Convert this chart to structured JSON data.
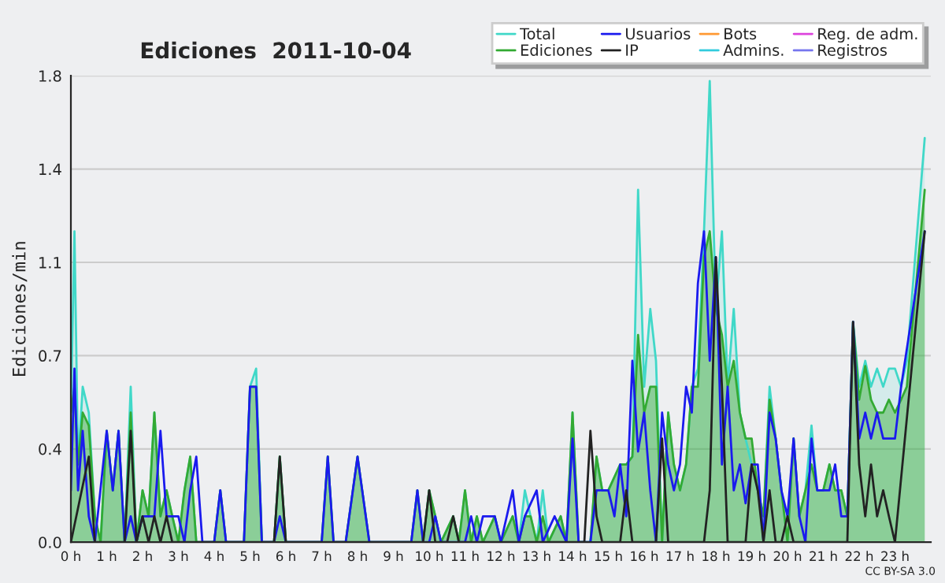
{
  "chart_data": {
    "type": "line",
    "title": "Ediciones  2011-10-04",
    "ylabel": "Ediciones/min",
    "xlim": [
      0,
      24
    ],
    "ylim": [
      0,
      1.8
    ],
    "xticks": [
      {
        "value": 0,
        "label": "0 h"
      },
      {
        "value": 1,
        "label": "1 h"
      },
      {
        "value": 2,
        "label": "2 h"
      },
      {
        "value": 3,
        "label": "3 h"
      },
      {
        "value": 4,
        "label": "4 h"
      },
      {
        "value": 5,
        "label": "5 h"
      },
      {
        "value": 6,
        "label": "6 h"
      },
      {
        "value": 7,
        "label": "7 h"
      },
      {
        "value": 8,
        "label": "8 h"
      },
      {
        "value": 9,
        "label": "9 h"
      },
      {
        "value": 10,
        "label": "10 h"
      },
      {
        "value": 11,
        "label": "11 h"
      },
      {
        "value": 12,
        "label": "12 h"
      },
      {
        "value": 13,
        "label": "13 h"
      },
      {
        "value": 14,
        "label": "14 h"
      },
      {
        "value": 15,
        "label": "15 h"
      },
      {
        "value": 16,
        "label": "16 h"
      },
      {
        "value": 17,
        "label": "17 h"
      },
      {
        "value": 18,
        "label": "18 h"
      },
      {
        "value": 19,
        "label": "19 h"
      },
      {
        "value": 20,
        "label": "20 h"
      },
      {
        "value": 21,
        "label": "21 h"
      },
      {
        "value": 22,
        "label": "22 h"
      },
      {
        "value": 23,
        "label": "23 h"
      }
    ],
    "yticks": [
      {
        "value": 0,
        "label": "0.0"
      },
      {
        "value": 0.36,
        "label": "0.4"
      },
      {
        "value": 0.72,
        "label": "0.7"
      },
      {
        "value": 1.08,
        "label": "1.1"
      },
      {
        "value": 1.44,
        "label": "1.4"
      },
      {
        "value": 1.8,
        "label": "1.8"
      }
    ],
    "grid": "y",
    "legend": "top right",
    "annotations": [
      "CC BY-SA 3.0"
    ],
    "series": [
      {
        "name": "Total",
        "type": "area",
        "color": "#40d8c8",
        "x": [
          0,
          0.1,
          0.2,
          0.33,
          0.5,
          0.67,
          0.83,
          1,
          1.17,
          1.33,
          1.5,
          1.67,
          1.83,
          2,
          2.17,
          2.33,
          2.5,
          2.67,
          2.83,
          3,
          3.17,
          3.33,
          3.5,
          4,
          4.17,
          4.33,
          4.83,
          5,
          5.17,
          5.33,
          5.67,
          5.83,
          6,
          7,
          7.17,
          7.33,
          7.67,
          8,
          8.33,
          9.5,
          9.67,
          9.83,
          10,
          10.17,
          10.33,
          10.67,
          10.83,
          11,
          11.17,
          11.33,
          11.5,
          11.83,
          12,
          12.33,
          12.5,
          12.67,
          12.83,
          13,
          13.17,
          13.33,
          13.67,
          13.83,
          14,
          14.17,
          14.5,
          14.67,
          14.83,
          15,
          15.33,
          15.5,
          15.67,
          15.83,
          16,
          16.17,
          16.33,
          16.5,
          16.67,
          16.83,
          17,
          17.17,
          17.33,
          17.5,
          17.67,
          17.83,
          18,
          18.17,
          18.33,
          18.5,
          18.67,
          18.83,
          19,
          19.17,
          19.33,
          19.5,
          19.67,
          19.83,
          20,
          20.17,
          20.33,
          20.5,
          20.67,
          20.83,
          21,
          21.17,
          21.33,
          21.5,
          21.67,
          21.83,
          22,
          22.17,
          22.33,
          22.5,
          22.67,
          22.83,
          23,
          23.17,
          23.33,
          23.83
        ],
        "values": [
          0.5,
          1.2,
          0.3,
          0.6,
          0.5,
          0.1,
          0,
          0.43,
          0.2,
          0.43,
          0,
          0.6,
          0,
          0.2,
          0.1,
          0.5,
          0.1,
          0.2,
          0.1,
          0,
          0.2,
          0.33,
          0,
          0,
          0.2,
          0,
          0,
          0.6,
          0.67,
          0,
          0,
          0.33,
          0,
          0,
          0.33,
          0,
          0,
          0.33,
          0,
          0,
          0.2,
          0,
          0.2,
          0.1,
          0,
          0.1,
          0,
          0.2,
          0,
          0.1,
          0,
          0.1,
          0,
          0.1,
          0,
          0.2,
          0.1,
          0,
          0.2,
          0,
          0.1,
          0,
          0.5,
          0,
          0,
          0.33,
          0.2,
          0.2,
          0.3,
          0.3,
          0.33,
          1.36,
          0.6,
          0.9,
          0.7,
          0,
          0.5,
          0.3,
          0.2,
          0.3,
          0.6,
          0.67,
          1.2,
          1.78,
          0.9,
          1.2,
          0.6,
          0.9,
          0.5,
          0.4,
          0.3,
          0.2,
          0.1,
          0.6,
          0.4,
          0.2,
          0,
          0.4,
          0.1,
          0.2,
          0.45,
          0.2,
          0.2,
          0.3,
          0.2,
          0.2,
          0.1,
          0.85,
          0.6,
          0.7,
          0.6,
          0.67,
          0.6,
          0.67,
          0.67,
          0.6,
          0.7,
          1.56
        ]
      },
      {
        "name": "Ediciones",
        "type": "area",
        "color": "#33aa33",
        "x": [
          0,
          0.1,
          0.2,
          0.33,
          0.5,
          0.67,
          0.83,
          1,
          1.17,
          1.33,
          1.5,
          1.67,
          1.83,
          2,
          2.17,
          2.33,
          2.5,
          2.67,
          2.83,
          3,
          3.17,
          3.33,
          3.5,
          4,
          4.17,
          4.33,
          4.83,
          5,
          5.17,
          5.33,
          5.67,
          5.83,
          6,
          7,
          7.17,
          7.33,
          7.67,
          8,
          8.33,
          9.5,
          9.67,
          9.83,
          10,
          10.17,
          10.33,
          10.67,
          10.83,
          11,
          11.17,
          11.33,
          11.5,
          11.83,
          12,
          12.33,
          12.5,
          12.67,
          12.83,
          13,
          13.17,
          13.33,
          13.67,
          13.83,
          14,
          14.17,
          14.5,
          14.67,
          14.83,
          15,
          15.33,
          15.5,
          15.67,
          15.83,
          16,
          16.17,
          16.33,
          16.5,
          16.67,
          16.83,
          17,
          17.17,
          17.33,
          17.5,
          17.67,
          17.83,
          18,
          18.17,
          18.33,
          18.5,
          18.67,
          18.83,
          19,
          19.17,
          19.33,
          19.5,
          19.67,
          19.83,
          20,
          20.17,
          20.33,
          20.5,
          20.67,
          20.83,
          21,
          21.17,
          21.33,
          21.5,
          21.67,
          21.83,
          22,
          22.17,
          22.33,
          22.5,
          22.67,
          22.83,
          23,
          23.17,
          23.33,
          23.83
        ],
        "values": [
          0.5,
          0.6,
          0.3,
          0.5,
          0.45,
          0.1,
          0,
          0.43,
          0.2,
          0.43,
          0,
          0.5,
          0,
          0.2,
          0.1,
          0.5,
          0.1,
          0.2,
          0.1,
          0,
          0.2,
          0.33,
          0,
          0,
          0.2,
          0,
          0,
          0.6,
          0.6,
          0,
          0,
          0.33,
          0,
          0,
          0.33,
          0,
          0,
          0.33,
          0,
          0,
          0.2,
          0,
          0.2,
          0.1,
          0,
          0.1,
          0,
          0.2,
          0,
          0.1,
          0,
          0.1,
          0,
          0.1,
          0,
          0.1,
          0.1,
          0,
          0.1,
          0,
          0.1,
          0,
          0.5,
          0,
          0,
          0.33,
          0.2,
          0.2,
          0.3,
          0.3,
          0.33,
          0.8,
          0.5,
          0.6,
          0.6,
          0,
          0.5,
          0.3,
          0.2,
          0.3,
          0.6,
          0.6,
          1.1,
          1.2,
          0.9,
          0.8,
          0.6,
          0.7,
          0.5,
          0.4,
          0.4,
          0.2,
          0.1,
          0.55,
          0.4,
          0.2,
          0,
          0.4,
          0.1,
          0.2,
          0.3,
          0.2,
          0.2,
          0.3,
          0.2,
          0.2,
          0.1,
          0.85,
          0.55,
          0.68,
          0.55,
          0.5,
          0.5,
          0.55,
          0.5,
          0.55,
          0.6,
          1.36
        ]
      },
      {
        "name": "Usuarios",
        "color": "#1a1aee",
        "x": [
          0,
          0.1,
          0.2,
          0.33,
          0.5,
          0.67,
          1,
          1.17,
          1.33,
          1.5,
          1.67,
          1.83,
          2,
          2.33,
          2.5,
          2.67,
          3,
          3.17,
          3.33,
          3.5,
          3.67,
          4,
          4.17,
          4.33,
          4.83,
          5,
          5.17,
          5.33,
          5.67,
          5.83,
          6,
          7,
          7.17,
          7.33,
          7.67,
          8,
          8.33,
          9.5,
          9.67,
          9.83,
          10,
          10.17,
          10.33,
          11,
          11.17,
          11.33,
          11.5,
          11.83,
          12,
          12.33,
          12.5,
          12.67,
          13,
          13.17,
          13.5,
          13.83,
          14,
          14.17,
          14.5,
          14.67,
          15,
          15.17,
          15.33,
          15.5,
          15.67,
          15.83,
          16,
          16.17,
          16.33,
          16.5,
          16.67,
          16.83,
          17,
          17.17,
          17.33,
          17.5,
          17.67,
          17.83,
          18,
          18.17,
          18.33,
          18.5,
          18.67,
          18.83,
          19,
          19.17,
          19.33,
          19.5,
          19.67,
          19.83,
          20,
          20.17,
          20.33,
          20.5,
          20.67,
          20.83,
          21,
          21.17,
          21.33,
          21.5,
          21.67,
          21.83,
          22,
          22.17,
          22.33,
          22.5,
          22.67,
          22.83,
          23,
          23.17,
          23.83
        ],
        "values": [
          0.2,
          0.67,
          0.2,
          0.43,
          0.1,
          0,
          0.43,
          0.2,
          0.43,
          0,
          0.1,
          0,
          0.1,
          0.1,
          0.43,
          0.1,
          0.1,
          0,
          0.2,
          0.33,
          0,
          0,
          0.2,
          0,
          0,
          0.6,
          0.6,
          0,
          0,
          0.1,
          0,
          0,
          0.33,
          0,
          0,
          0.33,
          0,
          0,
          0.2,
          0,
          0,
          0.1,
          0,
          0,
          0.1,
          0,
          0.1,
          0.1,
          0,
          0.2,
          0,
          0.1,
          0.2,
          0,
          0.1,
          0,
          0.4,
          0,
          0,
          0.2,
          0.2,
          0.1,
          0.3,
          0.1,
          0.7,
          0.35,
          0.5,
          0.2,
          0,
          0.5,
          0.3,
          0.2,
          0.3,
          0.6,
          0.5,
          1.0,
          1.2,
          0.7,
          1.1,
          0.3,
          0.6,
          0.2,
          0.3,
          0.15,
          0.3,
          0.3,
          0,
          0.5,
          0.4,
          0.2,
          0.1,
          0.4,
          0.1,
          0,
          0.4,
          0.2,
          0.2,
          0.2,
          0.3,
          0.1,
          0.1,
          0.85,
          0.4,
          0.5,
          0.4,
          0.5,
          0.4,
          0.4,
          0.4,
          0.6,
          1.2
        ]
      },
      {
        "name": "IP",
        "color": "#222222",
        "x": [
          0,
          0.5,
          0.67,
          1.5,
          1.67,
          1.83,
          2,
          2.17,
          2.33,
          2.5,
          2.67,
          2.83,
          5.67,
          5.83,
          6,
          9.83,
          10,
          10.17,
          10.5,
          10.67,
          10.83,
          14.33,
          14.5,
          14.67,
          14.83,
          15.33,
          15.5,
          15.67,
          16.33,
          16.5,
          16.67,
          17.67,
          17.83,
          18,
          18.17,
          18.33,
          18.83,
          19,
          19.17,
          19.33,
          19.5,
          19.67,
          19.83,
          20,
          20.17,
          21.67,
          21.83,
          22,
          22.17,
          22.33,
          22.5,
          22.67,
          22.83,
          23,
          23.83
        ],
        "values": [
          0,
          0.33,
          0,
          0,
          0.43,
          0,
          0.1,
          0,
          0.1,
          0,
          0.1,
          0,
          0,
          0.33,
          0,
          0,
          0.2,
          0,
          0,
          0.1,
          0,
          0,
          0.43,
          0.1,
          0,
          0,
          0.2,
          0,
          0,
          0.4,
          0,
          0,
          0.2,
          1.1,
          0.6,
          0,
          0,
          0.3,
          0.2,
          0,
          0.2,
          0,
          0,
          0.1,
          0,
          0,
          0.85,
          0.3,
          0.1,
          0.3,
          0.1,
          0.2,
          0.1,
          0,
          1.2
        ]
      },
      {
        "name": "Bots",
        "color": "#ff9933"
      },
      {
        "name": "Admins.",
        "color": "#33ccdd"
      },
      {
        "name": "Reg. de adm.",
        "color": "#dd44dd"
      },
      {
        "name": "Registros",
        "color": "#7777ee"
      }
    ]
  }
}
